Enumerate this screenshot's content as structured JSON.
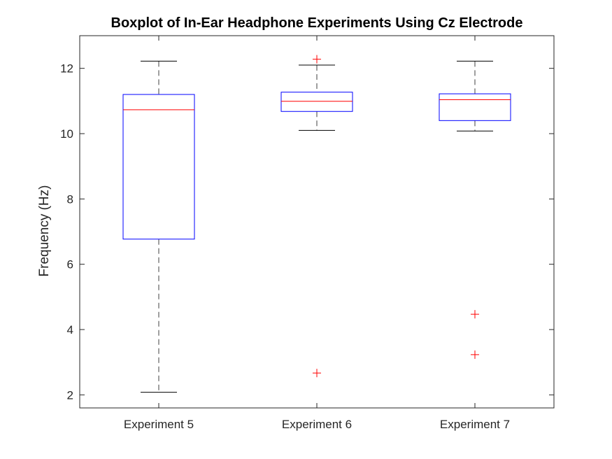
{
  "chart_data": {
    "type": "boxplot",
    "title": "Boxplot of In-Ear Headphone Experiments Using Cz Electrode",
    "xlabel": "",
    "ylabel": "Frequency (Hz)",
    "ylim": [
      1.6,
      13
    ],
    "yticks": [
      2,
      4,
      6,
      8,
      10,
      12
    ],
    "grid": false,
    "categories": [
      "Experiment 5",
      "Experiment 6",
      "Experiment 7"
    ],
    "boxes": [
      {
        "lower_whisker": 2.08,
        "q1": 6.77,
        "median": 10.73,
        "q3": 11.2,
        "upper_whisker": 12.22,
        "outliers": []
      },
      {
        "lower_whisker": 10.1,
        "q1": 10.68,
        "median": 10.99,
        "q3": 11.27,
        "upper_whisker": 12.1,
        "outliers": [
          12.28,
          2.67
        ]
      },
      {
        "lower_whisker": 10.08,
        "q1": 10.4,
        "median": 11.04,
        "q3": 11.22,
        "upper_whisker": 12.22,
        "outliers": [
          4.47,
          3.23
        ]
      }
    ],
    "colors": {
      "box": "#0000ff",
      "median": "#ff0000",
      "whisker": "#000000",
      "outlier": "#ff0000",
      "axis": "#262626"
    }
  }
}
